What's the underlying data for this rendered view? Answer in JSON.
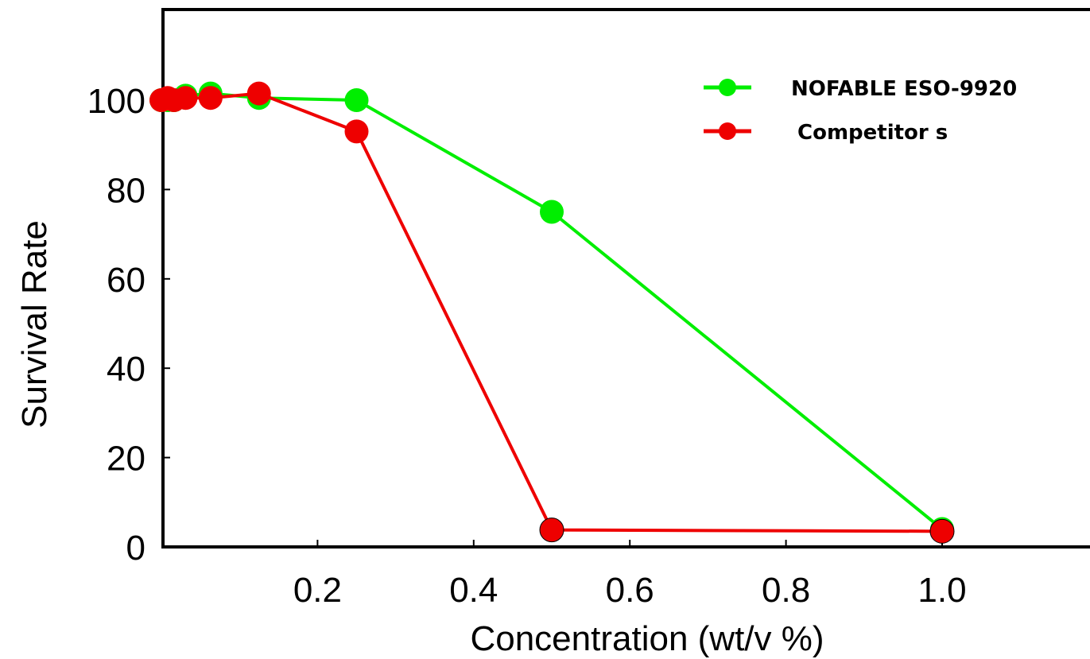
{
  "chart_data": {
    "type": "line",
    "xlabel": "Concentration (wt/v %)",
    "ylabel": "Survival Rate",
    "xlim": [
      0,
      1.2
    ],
    "ylim": [
      0,
      120
    ],
    "xticks": [
      0.2,
      0.4,
      0.6,
      0.8,
      1.0
    ],
    "xtick_labels": [
      "0.2",
      "0.4",
      "0.6",
      "0.8",
      "1.0"
    ],
    "yticks": [
      0,
      20,
      40,
      60,
      80,
      100
    ],
    "ytick_labels": [
      "0",
      "20",
      "40",
      "60",
      "80",
      "100"
    ],
    "grid": false,
    "legend_position": "top-right",
    "series": [
      {
        "name": "NOFABLE ESO-9920",
        "color": "#00ee00",
        "x": [
          0,
          0.008,
          0.016,
          0.031,
          0.063,
          0.125,
          0.25,
          0.5,
          1.0
        ],
        "y": [
          100,
          100,
          100,
          101,
          101.5,
          100.5,
          100,
          75,
          4
        ]
      },
      {
        "name": "Competitor s",
        "color": "#ee0000",
        "x": [
          0,
          0.008,
          0.016,
          0.031,
          0.063,
          0.125,
          0.25,
          0.5,
          1.0
        ],
        "y": [
          100,
          100.5,
          100,
          100.5,
          100.5,
          101.5,
          93,
          3.8,
          3.5
        ]
      }
    ]
  }
}
